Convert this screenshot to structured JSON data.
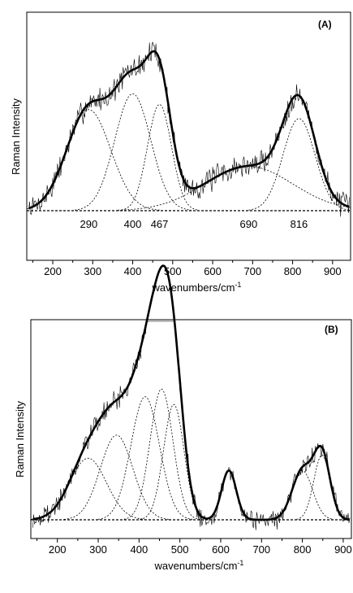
{
  "chart_data": [
    {
      "type": "line",
      "panel_label": "(A)",
      "ylabel": "Raman Intensity",
      "xlabel": "wavenumbers/cm",
      "xlabel_sup": "-1",
      "xlim": [
        135,
        945
      ],
      "xticks": [
        200,
        300,
        400,
        500,
        600,
        700,
        800,
        900
      ],
      "ylim": [
        0,
        1.12
      ],
      "noise_amplitude": 0.055,
      "peak_labels": [
        {
          "text": "290",
          "x": 290
        },
        {
          "text": "400",
          "x": 400
        },
        {
          "text": "467",
          "x": 467
        },
        {
          "text": "690",
          "x": 690
        },
        {
          "text": "816",
          "x": 816
        }
      ],
      "series": [
        {
          "role": "fit-component",
          "center": 290,
          "height": 0.57,
          "width": 55
        },
        {
          "role": "fit-component",
          "center": 400,
          "height": 0.66,
          "width": 45
        },
        {
          "role": "fit-component",
          "center": 467,
          "height": 0.6,
          "width": 30
        },
        {
          "role": "fit-component",
          "center": 690,
          "height": 0.25,
          "width": 110
        },
        {
          "role": "fit-component",
          "center": 816,
          "height": 0.52,
          "width": 40
        }
      ]
    },
    {
      "type": "line",
      "panel_label": "(B)",
      "ylabel": "Raman Intensity",
      "xlabel": "wavenumbers/cm",
      "xlabel_sup": "-1",
      "xlim": [
        135,
        920
      ],
      "xticks": [
        200,
        300,
        400,
        500,
        600,
        700,
        800,
        900
      ],
      "ylim": [
        -0.12,
        1.3
      ],
      "noise_amplitude": 0.055,
      "series": [
        {
          "role": "fit-component",
          "center": 275,
          "height": 0.4,
          "width": 45
        },
        {
          "role": "fit-component",
          "center": 345,
          "height": 0.55,
          "width": 40
        },
        {
          "role": "fit-component",
          "center": 415,
          "height": 0.8,
          "width": 35
        },
        {
          "role": "fit-component",
          "center": 455,
          "height": 0.85,
          "width": 28
        },
        {
          "role": "fit-component",
          "center": 485,
          "height": 0.75,
          "width": 25
        },
        {
          "role": "fit-component",
          "center": 620,
          "height": 0.32,
          "width": 18
        },
        {
          "role": "fit-component",
          "center": 800,
          "height": 0.32,
          "width": 25
        },
        {
          "role": "fit-component",
          "center": 848,
          "height": 0.42,
          "width": 20
        }
      ]
    }
  ]
}
